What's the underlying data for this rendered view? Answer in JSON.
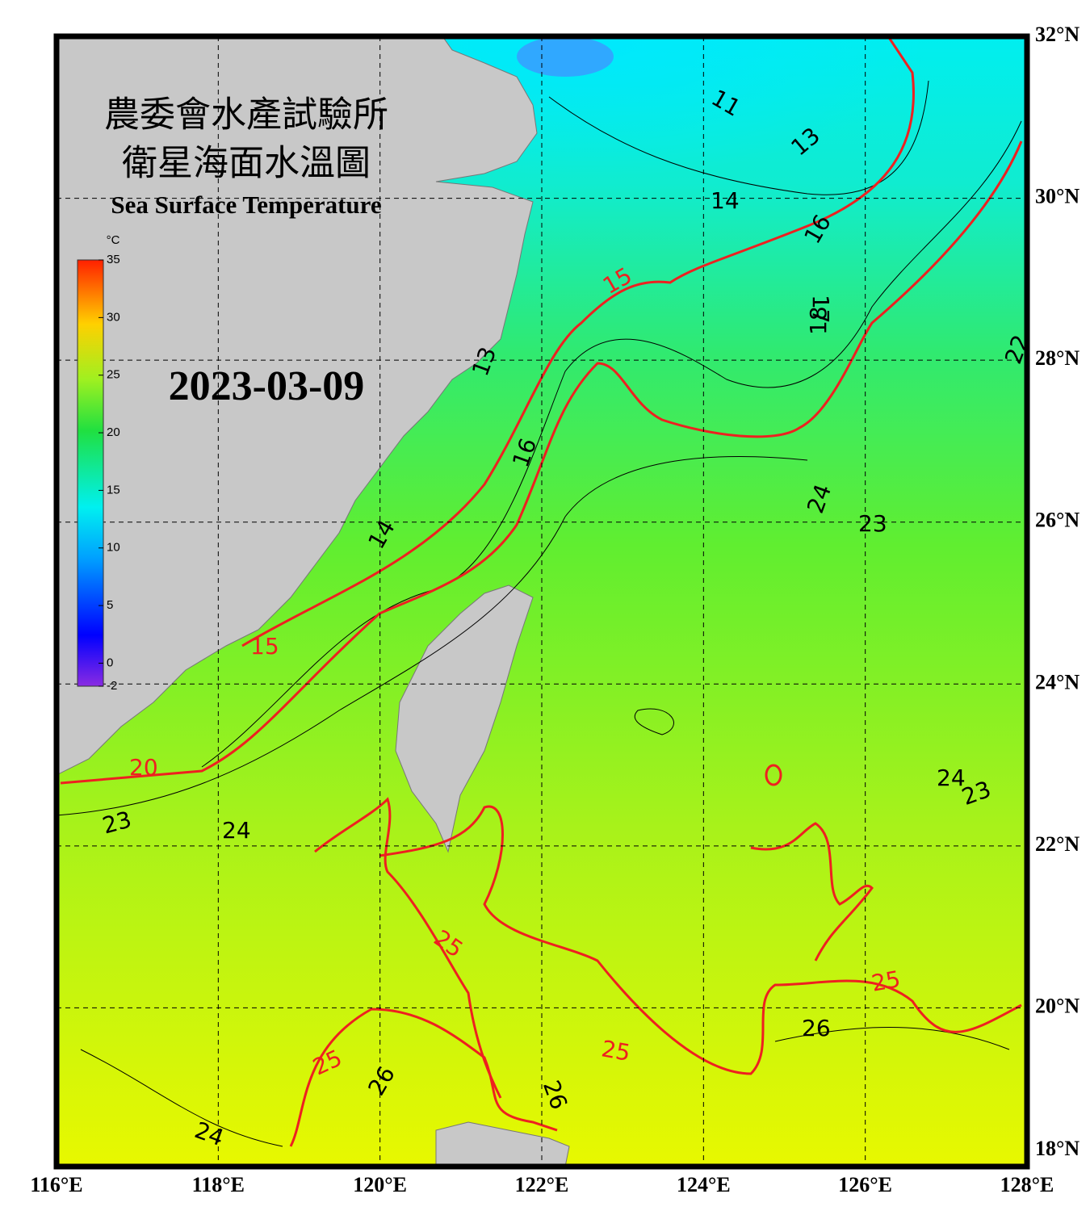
{
  "header": {
    "title_zh_1": "農委會水產試驗所",
    "title_zh_2": "衛星海面水溫圖",
    "title_en": "Sea Surface Temperature",
    "date": "2023-03-09"
  },
  "map": {
    "lonlim": [
      116,
      128
    ],
    "latlim": [
      18,
      32
    ],
    "lon_ticks": [
      {
        "value": 116,
        "label": "116°E"
      },
      {
        "value": 118,
        "label": "118°E"
      },
      {
        "value": 120,
        "label": "120°E"
      },
      {
        "value": 122,
        "label": "122°E"
      },
      {
        "value": 124,
        "label": "124°E"
      },
      {
        "value": 126,
        "label": "126°E"
      },
      {
        "value": 128,
        "label": "128°E"
      }
    ],
    "lat_ticks": [
      {
        "value": 18,
        "label": "18°N"
      },
      {
        "value": 20,
        "label": "20°N"
      },
      {
        "value": 22,
        "label": "22°N"
      },
      {
        "value": 24,
        "label": "24°N"
      },
      {
        "value": 26,
        "label": "26°N"
      },
      {
        "value": 28,
        "label": "28°N"
      },
      {
        "value": 30,
        "label": "30°N"
      },
      {
        "value": 32,
        "label": "32°N"
      }
    ],
    "contour_labels": [
      11,
      13,
      14,
      16,
      15,
      17,
      18,
      13,
      16,
      14,
      15,
      20,
      24,
      23,
      24,
      23,
      22,
      24,
      23,
      25,
      25,
      25,
      25,
      26,
      26,
      26,
      24
    ]
  },
  "colorbar": {
    "unit": "°C",
    "lim": [
      -2,
      35
    ],
    "ticks": [
      -2,
      0,
      5,
      10,
      15,
      20,
      25,
      30,
      35
    ]
  }
}
